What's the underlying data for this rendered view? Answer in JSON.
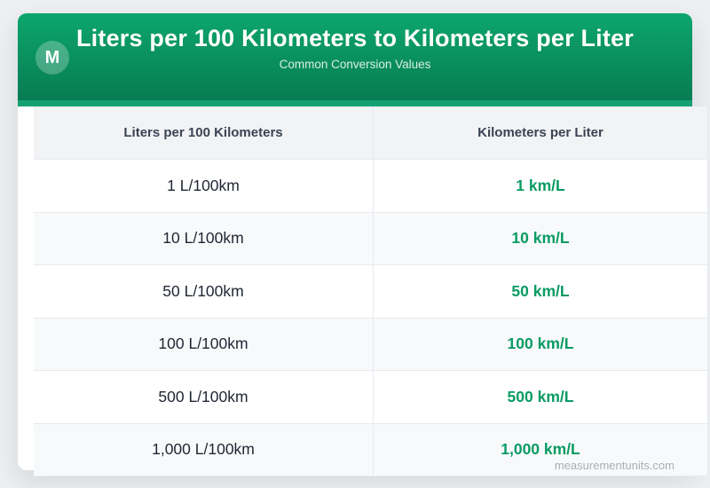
{
  "card": {
    "logo_letter": "M",
    "title": "Liters per 100 Kilometers to Kilometers per Liter",
    "subtitle": "Common Conversion Values"
  },
  "table": {
    "columns": [
      "Liters per 100 Kilometers",
      "Kilometers per Liter"
    ],
    "rows": [
      {
        "l_per_100km": "1 L/100km",
        "km_per_l": "1 km/L"
      },
      {
        "l_per_100km": "10 L/100km",
        "km_per_l": "10 km/L"
      },
      {
        "l_per_100km": "50 L/100km",
        "km_per_l": "50 km/L"
      },
      {
        "l_per_100km": "100 L/100km",
        "km_per_l": "100 km/L"
      },
      {
        "l_per_100km": "500 L/100km",
        "km_per_l": "500 km/L"
      },
      {
        "l_per_100km": "1,000 L/100km",
        "km_per_l": "1,000 km/L"
      }
    ]
  },
  "watermark": "measurementunits.com",
  "colors": {
    "page_background": "#edeff2",
    "header_gradient_top": "#0da66e",
    "header_gradient_bottom": "#077c52",
    "accent_bar": "#16a173",
    "header_row_background": "#f1f3f5",
    "alt_row_background": "#f8f9fb",
    "value_green": "#0a9b63",
    "heading_text": "#3b4454",
    "body_text": "#1f2633",
    "watermark_gray": "#a9aeb6"
  }
}
